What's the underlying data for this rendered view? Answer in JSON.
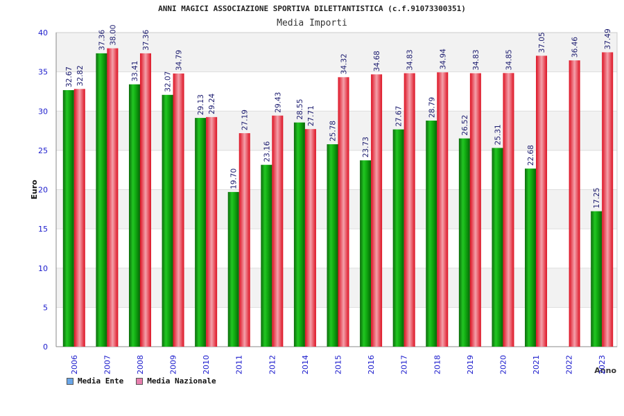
{
  "page": {
    "title": "ANNI MAGICI ASSOCIAZIONE SPORTIVA DILETTANTISTICA (c.f.91073300351)",
    "subtitle": "Media Importi"
  },
  "legend": {
    "ente_label": "Media Ente",
    "nazionale_label": "Media Nazionale",
    "ente_swatch": "#6aa6e8",
    "nazionale_swatch": "#e77fae"
  },
  "colors": {
    "ente": "#11aa11",
    "nazionale": "#ee2233",
    "value_label": "#1a1a6e",
    "tick_label": "#1a1acc"
  },
  "chart_data": {
    "type": "bar",
    "title": "ANNI MAGICI ASSOCIAZIONE SPORTIVA DILETTANTISTICA (c.f.91073300351)",
    "subtitle": "Media Importi",
    "xlabel": "Anno",
    "ylabel": "Euro",
    "ylim": [
      0,
      40
    ],
    "yticks": [
      0,
      5,
      10,
      15,
      20,
      25,
      30,
      35,
      40
    ],
    "grid": true,
    "legend_position": "bottom-left",
    "categories": [
      "2006",
      "2007",
      "2008",
      "2009",
      "2010",
      "2011",
      "2012",
      "2014",
      "2015",
      "2016",
      "2017",
      "2018",
      "2019",
      "2020",
      "2021",
      "2022",
      "2023"
    ],
    "series": [
      {
        "name": "Media Ente",
        "values": [
          32.67,
          37.36,
          33.41,
          32.07,
          29.13,
          19.7,
          23.16,
          28.55,
          25.78,
          23.73,
          27.67,
          28.79,
          26.52,
          25.31,
          22.68,
          null,
          17.25
        ],
        "labels": [
          "32.67",
          "37.36",
          "33.41",
          "32.07",
          "29.13",
          "19.70",
          "23.16",
          "28.55",
          "25.78",
          "23.73",
          "27.67",
          "28.79",
          "26.52",
          "25.31",
          "22.68",
          null,
          "17.25"
        ]
      },
      {
        "name": "Media Nazionale",
        "values": [
          32.82,
          38.0,
          37.36,
          34.79,
          29.24,
          27.19,
          29.43,
          27.71,
          34.32,
          34.68,
          34.83,
          34.94,
          34.83,
          34.85,
          37.05,
          36.46,
          37.49
        ],
        "labels": [
          "32.82",
          "38.00",
          "37.36",
          "34.79",
          "29.24",
          "27.19",
          "29.43",
          "27.71",
          "34.32",
          "34.68",
          "34.83",
          "34.94",
          "34.83",
          "34.85",
          "37.05",
          "36.46",
          "37.49"
        ]
      }
    ]
  }
}
